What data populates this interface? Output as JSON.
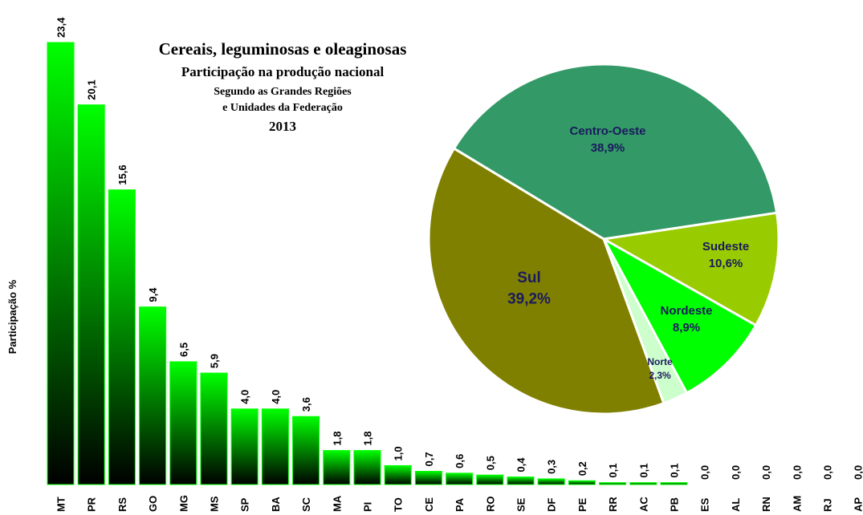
{
  "chart_data": [
    {
      "type": "bar",
      "title": "Cereais, leguminosas e oleaginosas",
      "subtitle": [
        "Participação na produção nacional",
        "Segundo as Grandes Regiões",
        "e Unidades da Federação",
        "2013"
      ],
      "y_label": "Participação %",
      "categories": [
        "MT",
        "PR",
        "RS",
        "GO",
        "MG",
        "MS",
        "SP",
        "BA",
        "SC",
        "MA",
        "PI",
        "TO",
        "CE",
        "PA",
        "RO",
        "SE",
        "DF",
        "PE",
        "RR",
        "AC",
        "PB",
        "ES",
        "AL",
        "RN",
        "AM",
        "RJ",
        "AP"
      ],
      "values": [
        23.4,
        20.1,
        15.6,
        9.4,
        6.5,
        5.9,
        4.0,
        4.0,
        3.6,
        1.8,
        1.8,
        1.0,
        0.7,
        0.6,
        0.5,
        0.4,
        0.3,
        0.2,
        0.1,
        0.1,
        0.1,
        0.0,
        0.0,
        0.0,
        0.0,
        0.0,
        0.0
      ],
      "value_labels": [
        "23,4",
        "20,1",
        "15,6",
        "9,4",
        "6,5",
        "5,9",
        "4,0",
        "4,0",
        "3,6",
        "1,8",
        "1,8",
        "1,0",
        "0,7",
        "0,6",
        "0,5",
        "0,4",
        "0,3",
        "0,2",
        "0,1",
        "0,1",
        "0,1",
        "0,0",
        "0,0",
        "0,0",
        "0,0",
        "0,0",
        "0,0"
      ],
      "color": "#00ff00"
    },
    {
      "type": "pie",
      "categories": [
        "Centro-Oeste",
        "Sudeste",
        "Nordeste",
        "Norte",
        "Sul"
      ],
      "values": [
        38.9,
        10.6,
        8.9,
        2.3,
        39.2
      ],
      "value_labels": [
        "38,9%",
        "10,6%",
        "8,9%",
        "2,3%",
        "39,2%"
      ],
      "colors": [
        "#339966",
        "#99cc00",
        "#00ff00",
        "#ccffcc",
        "#808000"
      ]
    }
  ]
}
